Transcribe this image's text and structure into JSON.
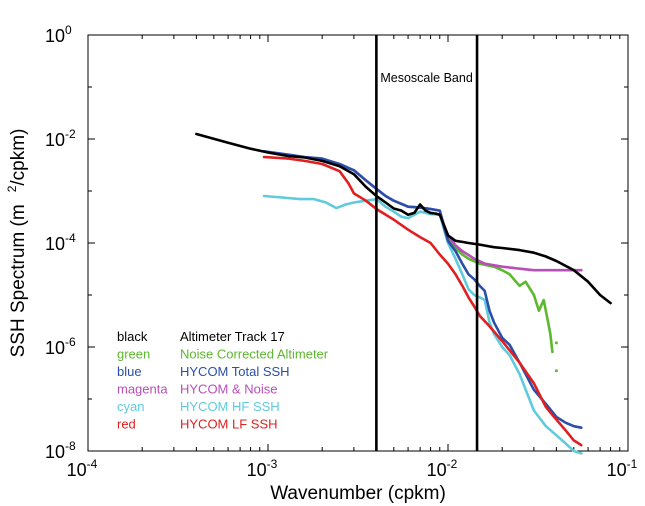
{
  "chart_data": {
    "type": "line",
    "title": "",
    "xlabel": "Wavenumber (cpkm)",
    "ylabel_main": "SSH Spectrum (m",
    "ylabel_sup": "2",
    "ylabel_tail": "/cpkm)",
    "xscale": "log",
    "yscale": "log",
    "xlim": [
      0.0001,
      0.1
    ],
    "ylim": [
      1e-08,
      1
    ],
    "grid": false,
    "legend_placement": "bottom-left",
    "x_ticks": [
      {
        "value": 0.0001,
        "base": "10",
        "exp": "-4"
      },
      {
        "value": 0.001,
        "base": "10",
        "exp": "-3"
      },
      {
        "value": 0.01,
        "base": "10",
        "exp": "-2"
      },
      {
        "value": 0.1,
        "base": "10",
        "exp": "-1"
      }
    ],
    "y_ticks": [
      {
        "value": 1,
        "base": "10",
        "exp": "0"
      },
      {
        "value": 0.01,
        "base": "10",
        "exp": "-2"
      },
      {
        "value": 0.0001,
        "base": "10",
        "exp": "-4"
      },
      {
        "value": 1e-06,
        "base": "10",
        "exp": "-6"
      },
      {
        "value": 1e-08,
        "base": "10",
        "exp": "-8"
      }
    ],
    "band_lines_x": [
      0.004,
      0.0145
    ],
    "band_label": "Mesoscale Band",
    "series": [
      {
        "key": "black",
        "color_name": "black",
        "name": "Altimeter Track 17",
        "color": "#000000",
        "points": [
          [
            0.0004,
            0.0125
          ],
          [
            0.0006,
            0.0085
          ],
          [
            0.0008,
            0.0065
          ],
          [
            0.001,
            0.0055
          ],
          [
            0.0013,
            0.0047
          ],
          [
            0.0016,
            0.0044
          ],
          [
            0.002,
            0.0038
          ],
          [
            0.0025,
            0.003
          ],
          [
            0.003,
            0.0021
          ],
          [
            0.0035,
            0.0012
          ],
          [
            0.004,
            0.0008
          ],
          [
            0.0045,
            0.0006
          ],
          [
            0.005,
            0.00046
          ],
          [
            0.0055,
            0.00042
          ],
          [
            0.006,
            0.00035
          ],
          [
            0.0065,
            0.00038
          ],
          [
            0.007,
            0.00055
          ],
          [
            0.0075,
            0.00042
          ],
          [
            0.008,
            0.00038
          ],
          [
            0.0085,
            0.00037
          ],
          [
            0.009,
            0.00035
          ],
          [
            0.0095,
            0.00022
          ],
          [
            0.01,
            0.00014
          ],
          [
            0.011,
            0.00011
          ],
          [
            0.012,
            0.000105
          ],
          [
            0.013,
            0.0001
          ],
          [
            0.015,
            9.3e-05
          ],
          [
            0.018,
            8.3e-05
          ],
          [
            0.02,
            8e-05
          ],
          [
            0.025,
            7.3e-05
          ],
          [
            0.03,
            6.5e-05
          ],
          [
            0.035,
            5.5e-05
          ],
          [
            0.04,
            4.5e-05
          ],
          [
            0.05,
            3e-05
          ],
          [
            0.06,
            1.8e-05
          ],
          [
            0.07,
            1e-05
          ],
          [
            0.08,
            7e-06
          ]
        ]
      },
      {
        "key": "green",
        "color_name": "green",
        "name": "Noise Corrected Altimeter",
        "color": "#5cb82e",
        "points": [
          [
            0.0092,
            0.0003
          ],
          [
            0.0095,
            0.0002
          ],
          [
            0.01,
            0.00012
          ],
          [
            0.011,
            8e-05
          ],
          [
            0.012,
            6e-05
          ],
          [
            0.013,
            5e-05
          ],
          [
            0.015,
            4e-05
          ],
          [
            0.018,
            3.5e-05
          ],
          [
            0.02,
            3e-05
          ],
          [
            0.022,
            2.5e-05
          ],
          [
            0.025,
            1.5e-05
          ],
          [
            0.027,
            1.8e-05
          ],
          [
            0.03,
            1e-05
          ],
          [
            0.032,
            5e-06
          ],
          [
            0.034,
            8e-06
          ],
          [
            0.036,
            3e-06
          ],
          [
            0.037,
            1.8e-06
          ],
          [
            0.038,
            8e-07
          ]
        ]
      },
      {
        "key": "blue",
        "color_name": "blue",
        "name": "HYCOM Total SSH",
        "color": "#2b4fa8",
        "points": [
          [
            0.00095,
            0.0058
          ],
          [
            0.0013,
            0.005
          ],
          [
            0.0016,
            0.0045
          ],
          [
            0.002,
            0.0042
          ],
          [
            0.0025,
            0.0033
          ],
          [
            0.003,
            0.0025
          ],
          [
            0.0035,
            0.0016
          ],
          [
            0.004,
            0.0011
          ],
          [
            0.0045,
            0.0008
          ],
          [
            0.005,
            0.00065
          ],
          [
            0.006,
            0.0005
          ],
          [
            0.007,
            0.00048
          ],
          [
            0.008,
            0.00045
          ],
          [
            0.009,
            0.00042
          ],
          [
            0.0095,
            0.0002
          ],
          [
            0.01,
            0.00011
          ],
          [
            0.011,
            7e-05
          ],
          [
            0.012,
            4e-05
          ],
          [
            0.013,
            2.5e-05
          ],
          [
            0.014,
            2e-05
          ],
          [
            0.015,
            1.5e-05
          ],
          [
            0.016,
            1.2e-05
          ],
          [
            0.017,
            5e-06
          ],
          [
            0.018,
            3e-06
          ],
          [
            0.02,
            1.5e-06
          ],
          [
            0.022,
            1.1e-06
          ],
          [
            0.025,
            5e-07
          ],
          [
            0.03,
            1.5e-07
          ],
          [
            0.035,
            8e-08
          ],
          [
            0.04,
            4.5e-08
          ],
          [
            0.045,
            3.5e-08
          ],
          [
            0.05,
            3e-08
          ],
          [
            0.055,
            2.8e-08
          ]
        ]
      },
      {
        "key": "magenta",
        "color_name": "magenta",
        "name": "HYCOM & Noise",
        "color": "#b84fb8",
        "points": [
          [
            0.0025,
            0.0032
          ],
          [
            0.003,
            0.0025
          ],
          [
            0.0035,
            0.0016
          ],
          [
            0.004,
            0.0011
          ],
          [
            0.0045,
            0.0008
          ],
          [
            0.005,
            0.00065
          ],
          [
            0.006,
            0.0005
          ],
          [
            0.007,
            0.00048
          ],
          [
            0.008,
            0.00045
          ],
          [
            0.009,
            0.00042
          ],
          [
            0.0095,
            0.00022
          ],
          [
            0.01,
            0.00014
          ],
          [
            0.011,
            9e-05
          ],
          [
            0.012,
            7e-05
          ],
          [
            0.014,
            5e-05
          ],
          [
            0.016,
            4e-05
          ],
          [
            0.02,
            3.5e-05
          ],
          [
            0.025,
            3.2e-05
          ],
          [
            0.03,
            3e-05
          ],
          [
            0.04,
            3e-05
          ],
          [
            0.05,
            3e-05
          ],
          [
            0.055,
            3e-05
          ]
        ]
      },
      {
        "key": "cyan",
        "color_name": "cyan",
        "name": "HYCOM HF SSH",
        "color": "#5fcbdc",
        "points": [
          [
            0.00095,
            0.0008
          ],
          [
            0.0012,
            0.00075
          ],
          [
            0.0015,
            0.0007
          ],
          [
            0.0018,
            0.0007
          ],
          [
            0.0021,
            0.0006
          ],
          [
            0.0024,
            0.00047
          ],
          [
            0.0027,
            0.00055
          ],
          [
            0.003,
            0.0006
          ],
          [
            0.0035,
            0.00065
          ],
          [
            0.004,
            0.0007
          ],
          [
            0.0045,
            0.0005
          ],
          [
            0.005,
            0.0004
          ],
          [
            0.0055,
            0.00032
          ],
          [
            0.006,
            0.0003
          ],
          [
            0.0065,
            0.00035
          ],
          [
            0.007,
            0.0004
          ],
          [
            0.0075,
            0.00038
          ],
          [
            0.008,
            0.00036
          ],
          [
            0.009,
            0.00035
          ],
          [
            0.01,
            0.0001
          ],
          [
            0.011,
            5e-05
          ],
          [
            0.012,
            2.5e-05
          ],
          [
            0.013,
            1.3e-05
          ],
          [
            0.014,
            1e-05
          ],
          [
            0.015,
            9e-06
          ],
          [
            0.016,
            8e-06
          ],
          [
            0.017,
            3e-06
          ],
          [
            0.018,
            1.8e-06
          ],
          [
            0.02,
            1e-06
          ],
          [
            0.022,
            7e-07
          ],
          [
            0.025,
            3e-07
          ],
          [
            0.03,
            6e-08
          ],
          [
            0.035,
            3e-08
          ],
          [
            0.04,
            2e-08
          ],
          [
            0.045,
            1.4e-08
          ],
          [
            0.05,
            1e-08
          ],
          [
            0.055,
            9e-09
          ]
        ]
      },
      {
        "key": "red",
        "color_name": "red",
        "name": "HYCOM  LF SSH",
        "color": "#e02020",
        "points": [
          [
            0.00095,
            0.0045
          ],
          [
            0.0013,
            0.0042
          ],
          [
            0.0016,
            0.0038
          ],
          [
            0.002,
            0.0033
          ],
          [
            0.0025,
            0.0024
          ],
          [
            0.0028,
            0.0014
          ],
          [
            0.003,
            0.0009
          ],
          [
            0.0035,
            0.00065
          ],
          [
            0.004,
            0.00045
          ],
          [
            0.005,
            0.00028
          ],
          [
            0.006,
            0.00018
          ],
          [
            0.007,
            0.00013
          ],
          [
            0.008,
            0.0001
          ],
          [
            0.009,
            6e-05
          ],
          [
            0.01,
            4e-05
          ],
          [
            0.011,
            2.5e-05
          ],
          [
            0.012,
            1.5e-05
          ],
          [
            0.013,
            9e-06
          ],
          [
            0.014,
            6e-06
          ],
          [
            0.015,
            4e-06
          ],
          [
            0.017,
            2.5e-06
          ],
          [
            0.02,
            1.3e-06
          ],
          [
            0.025,
            5e-07
          ],
          [
            0.03,
            2e-07
          ],
          [
            0.035,
            7e-08
          ],
          [
            0.04,
            4e-08
          ],
          [
            0.045,
            2.5e-08
          ],
          [
            0.05,
            1.6e-08
          ],
          [
            0.055,
            1.3e-08
          ]
        ]
      }
    ],
    "stray_markers": [
      {
        "series": "green",
        "x": 0.04,
        "y": 1.2e-06
      },
      {
        "series": "green",
        "x": 0.04,
        "y": 3.5e-07
      }
    ]
  }
}
